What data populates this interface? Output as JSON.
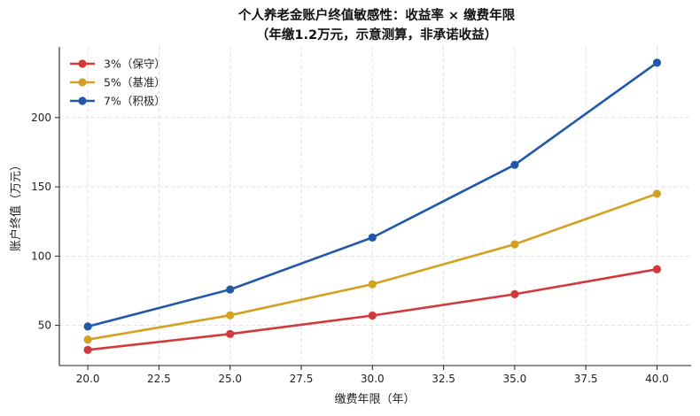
{
  "chart_data": {
    "type": "line",
    "title": "个人养老金账户终值敏感性：收益率 × 缴费年限",
    "subtitle": "（年缴1.2万元，示意测算，非承诺收益）",
    "xlabel": "缴费年限（年）",
    "ylabel": "账户终值（万元）",
    "x": [
      20,
      25,
      30,
      35,
      40
    ],
    "xlim": [
      19,
      41.2
    ],
    "ylim": [
      21,
      251
    ],
    "xticks": [
      "20.0",
      "22.5",
      "25.0",
      "27.5",
      "30.0",
      "32.5",
      "35.0",
      "37.5",
      "40.0"
    ],
    "yticks": [
      "50",
      "100",
      "150",
      "200"
    ],
    "grid": true,
    "legend_position": "top-left",
    "series": [
      {
        "name": "3%（保守）",
        "color": "#d13a3a",
        "values": [
          32.3,
          43.8,
          57.1,
          72.5,
          90.5
        ]
      },
      {
        "name": "5%（基准）",
        "color": "#d4a020",
        "values": [
          39.7,
          57.3,
          79.7,
          108.5,
          145.0
        ]
      },
      {
        "name": "7%（积极）",
        "color": "#2159a8",
        "values": [
          49.2,
          75.9,
          113.4,
          165.9,
          239.6
        ]
      }
    ]
  }
}
